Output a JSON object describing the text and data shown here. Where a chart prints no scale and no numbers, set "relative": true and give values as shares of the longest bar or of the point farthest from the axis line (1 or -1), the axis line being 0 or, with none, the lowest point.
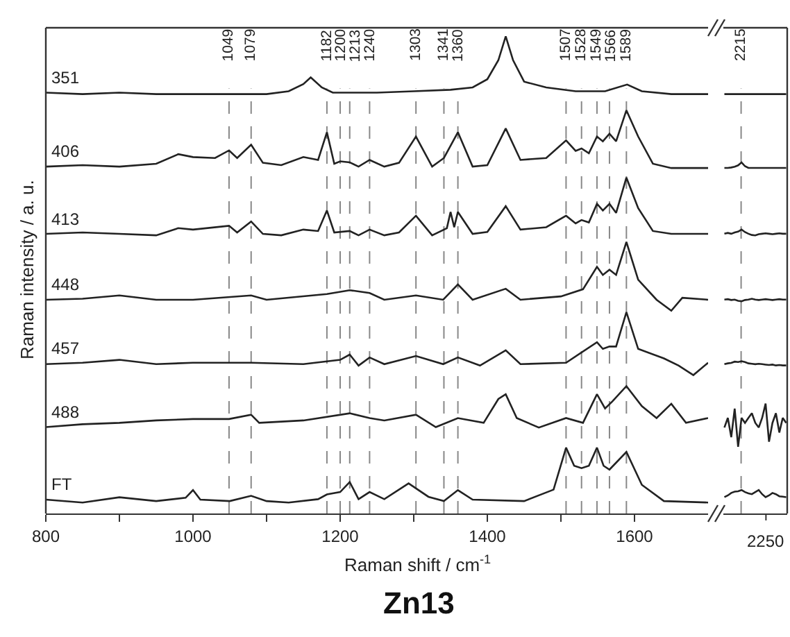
{
  "chart_data": [
    {
      "type": "line",
      "relative": true,
      "title": "Zn13",
      "xlabel": "Raman shift / cm$^{-1}$",
      "ylabel": "Raman intensity / a. u.",
      "xlim": [
        800,
        1700
      ],
      "xticks": [
        800,
        {
          "value": 900,
          "label": null
        },
        1000,
        {
          "value": 1100,
          "label": null
        },
        1200,
        {
          "value": 1300,
          "label": null
        },
        1400,
        {
          "value": 1500,
          "label": null
        },
        1600
      ],
      "tick_labels": "x",
      "legend": false,
      "grid": false,
      "line_style": "solid",
      "marker": "none",
      "series": [
        {
          "name": "351",
          "color": "#222222",
          "x": [
            800,
            850,
            900,
            950,
            1000,
            1050,
            1100,
            1130,
            1150,
            1160,
            1175,
            1190,
            1250,
            1300,
            1350,
            1380,
            1400,
            1415,
            1425,
            1435,
            1450,
            1480,
            1520,
            1560,
            1590,
            1610,
            1650,
            1700
          ],
          "values": [
            0.882,
            0.879,
            0.882,
            0.879,
            0.879,
            0.879,
            0.879,
            0.885,
            0.9,
            0.914,
            0.893,
            0.882,
            0.882,
            0.885,
            0.888,
            0.893,
            0.91,
            0.95,
            1.0,
            0.95,
            0.905,
            0.893,
            0.885,
            0.885,
            0.899,
            0.885,
            0.879,
            0.879
          ]
        },
        {
          "name": "406",
          "color": "#222222",
          "x": [
            800,
            850,
            900,
            950,
            980,
            1000,
            1030,
            1049,
            1060,
            1079,
            1095,
            1120,
            1150,
            1170,
            1182,
            1192,
            1200,
            1213,
            1225,
            1240,
            1260,
            1280,
            1303,
            1325,
            1341,
            1360,
            1380,
            1400,
            1425,
            1445,
            1480,
            1507,
            1520,
            1528,
            1538,
            1549,
            1557,
            1566,
            1575,
            1589,
            1605,
            1625,
            1650,
            1700
          ],
          "values": [
            0.727,
            0.73,
            0.727,
            0.733,
            0.753,
            0.747,
            0.745,
            0.761,
            0.745,
            0.773,
            0.735,
            0.73,
            0.747,
            0.741,
            0.799,
            0.733,
            0.738,
            0.736,
            0.727,
            0.741,
            0.727,
            0.735,
            0.79,
            0.727,
            0.745,
            0.799,
            0.727,
            0.73,
            0.807,
            0.741,
            0.745,
            0.782,
            0.76,
            0.765,
            0.755,
            0.79,
            0.78,
            0.796,
            0.78,
            0.845,
            0.79,
            0.733,
            0.724,
            0.724
          ]
        },
        {
          "name": "413",
          "color": "#222222",
          "x": [
            800,
            850,
            900,
            950,
            980,
            1000,
            1049,
            1060,
            1079,
            1095,
            1120,
            1150,
            1170,
            1182,
            1192,
            1213,
            1225,
            1240,
            1260,
            1280,
            1303,
            1325,
            1345,
            1350,
            1355,
            1360,
            1380,
            1400,
            1425,
            1445,
            1480,
            1507,
            1520,
            1528,
            1538,
            1549,
            1557,
            1566,
            1575,
            1589,
            1605,
            1625,
            1650,
            1700
          ],
          "values": [
            0.586,
            0.589,
            0.586,
            0.583,
            0.598,
            0.595,
            0.603,
            0.589,
            0.612,
            0.586,
            0.583,
            0.595,
            0.592,
            0.635,
            0.589,
            0.592,
            0.583,
            0.595,
            0.583,
            0.589,
            0.624,
            0.583,
            0.598,
            0.632,
            0.6,
            0.632,
            0.586,
            0.59,
            0.644,
            0.595,
            0.6,
            0.624,
            0.608,
            0.615,
            0.61,
            0.649,
            0.635,
            0.649,
            0.63,
            0.704,
            0.64,
            0.592,
            0.586,
            0.586
          ]
        },
        {
          "name": "448",
          "color": "#222222",
          "x": [
            800,
            850,
            900,
            950,
            1000,
            1079,
            1100,
            1182,
            1213,
            1240,
            1260,
            1303,
            1340,
            1360,
            1380,
            1425,
            1445,
            1500,
            1530,
            1549,
            1557,
            1566,
            1575,
            1589,
            1605,
            1630,
            1650,
            1665,
            1700
          ],
          "values": [
            0.448,
            0.45,
            0.457,
            0.448,
            0.448,
            0.457,
            0.448,
            0.46,
            0.468,
            0.462,
            0.448,
            0.457,
            0.448,
            0.48,
            0.448,
            0.471,
            0.448,
            0.455,
            0.47,
            0.517,
            0.5,
            0.511,
            0.5,
            0.569,
            0.49,
            0.448,
            0.425,
            0.452,
            0.448
          ]
        },
        {
          "name": "457",
          "color": "#222222",
          "x": [
            800,
            850,
            900,
            950,
            1000,
            1079,
            1150,
            1200,
            1213,
            1225,
            1240,
            1260,
            1303,
            1340,
            1360,
            1390,
            1425,
            1445,
            1507,
            1549,
            1557,
            1566,
            1575,
            1589,
            1605,
            1640,
            1660,
            1680,
            1700
          ],
          "values": [
            0.313,
            0.316,
            0.322,
            0.313,
            0.316,
            0.316,
            0.313,
            0.322,
            0.333,
            0.31,
            0.327,
            0.313,
            0.33,
            0.313,
            0.327,
            0.31,
            0.342,
            0.313,
            0.316,
            0.359,
            0.345,
            0.35,
            0.35,
            0.422,
            0.345,
            0.325,
            0.31,
            0.29,
            0.316
          ]
        },
        {
          "name": "488",
          "color": "#222222",
          "x": [
            800,
            850,
            900,
            950,
            1000,
            1049,
            1079,
            1090,
            1150,
            1213,
            1240,
            1260,
            1303,
            1330,
            1360,
            1395,
            1415,
            1425,
            1440,
            1470,
            1507,
            1530,
            1549,
            1560,
            1570,
            1589,
            1610,
            1630,
            1650,
            1670,
            1700
          ],
          "values": [
            0.181,
            0.187,
            0.19,
            0.195,
            0.198,
            0.198,
            0.207,
            0.19,
            0.195,
            0.21,
            0.2,
            0.195,
            0.207,
            0.181,
            0.2,
            0.19,
            0.24,
            0.25,
            0.2,
            0.18,
            0.2,
            0.19,
            0.25,
            0.22,
            0.235,
            0.267,
            0.225,
            0.2,
            0.23,
            0.19,
            0.2
          ]
        },
        {
          "name": "FT",
          "color": "#222222",
          "x": [
            800,
            850,
            900,
            950,
            990,
            1000,
            1010,
            1050,
            1079,
            1100,
            1130,
            1170,
            1182,
            1200,
            1213,
            1225,
            1240,
            1260,
            1293,
            1320,
            1341,
            1360,
            1380,
            1450,
            1490,
            1507,
            1518,
            1528,
            1538,
            1549,
            1558,
            1566,
            1589,
            1610,
            1640,
            1700
          ],
          "values": [
            0.029,
            0.023,
            0.034,
            0.026,
            0.033,
            0.049,
            0.029,
            0.026,
            0.037,
            0.026,
            0.023,
            0.03,
            0.04,
            0.045,
            0.066,
            0.03,
            0.045,
            0.03,
            0.063,
            0.035,
            0.026,
            0.049,
            0.029,
            0.026,
            0.05,
            0.138,
            0.1,
            0.095,
            0.1,
            0.138,
            0.1,
            0.092,
            0.129,
            0.06,
            0.026,
            0.023
          ]
        }
      ],
      "ref_lines": [
        {
          "axis": "x",
          "value": 1049,
          "label": "1049",
          "color": "#888888",
          "line_style": "dashed"
        },
        {
          "axis": "x",
          "value": 1079,
          "label": "1079",
          "color": "#888888",
          "line_style": "dashed"
        },
        {
          "axis": "x",
          "value": 1182,
          "label": "1182",
          "color": "#888888",
          "line_style": "dashed"
        },
        {
          "axis": "x",
          "value": 1200,
          "label": "1200",
          "color": "#888888",
          "line_style": "dashed"
        },
        {
          "axis": "x",
          "value": 1213,
          "label": "1213",
          "color": "#888888",
          "line_style": "dashed"
        },
        {
          "axis": "x",
          "value": 1240,
          "label": "1240",
          "color": "#888888",
          "line_style": "dashed"
        },
        {
          "axis": "x",
          "value": 1303,
          "label": "1303",
          "color": "#888888",
          "line_style": "dashed"
        },
        {
          "axis": "x",
          "value": 1341,
          "label": "1341",
          "color": "#888888",
          "line_style": "dashed"
        },
        {
          "axis": "x",
          "value": 1360,
          "label": "1360",
          "color": "#888888",
          "line_style": "dashed"
        },
        {
          "axis": "x",
          "value": 1507,
          "label": "1507",
          "color": "#888888",
          "line_style": "dashed"
        },
        {
          "axis": "x",
          "value": 1528,
          "label": "1528",
          "color": "#888888",
          "line_style": "dashed"
        },
        {
          "axis": "x",
          "value": 1549,
          "label": "1549",
          "color": "#888888",
          "line_style": "dashed"
        },
        {
          "axis": "x",
          "value": 1566,
          "label": "1566",
          "color": "#888888",
          "line_style": "dashed"
        },
        {
          "axis": "x",
          "value": 1589,
          "label": "1589",
          "color": "#888888",
          "line_style": "dashed"
        }
      ]
    },
    {
      "type": "line",
      "relative": true,
      "categories": [
        null,
        null,
        null,
        null,
        null,
        null,
        null,
        null,
        null,
        null,
        null,
        null,
        null,
        null,
        null,
        null,
        null,
        null,
        null
      ],
      "annotations": [
        "2250",
        "2215"
      ],
      "tick_labels": false,
      "legend": false,
      "grid": false,
      "line_style": "solid",
      "marker": "none",
      "series": [
        {
          "color": "#222222",
          "values": [
            1,
            1,
            1,
            1,
            1,
            1,
            1,
            1,
            1,
            1,
            1,
            1,
            1,
            1,
            1,
            1,
            1,
            1,
            1
          ]
        },
        {
          "color": "#222222",
          "values": [
            0.824,
            0.824,
            0.825,
            0.827,
            0.83,
            0.837,
            0.828,
            0.824,
            0.824,
            0.824,
            0.824,
            0.824,
            0.824,
            0.824,
            0.824,
            0.824,
            0.824,
            0.824,
            0.824
          ]
        },
        {
          "color": "#222222",
          "values": [
            0.667,
            0.669,
            0.667,
            0.67,
            0.672,
            0.677,
            0.671,
            0.667,
            0.664,
            0.663,
            0.666,
            0.667,
            0.668,
            0.667,
            0.666,
            0.667,
            0.668,
            0.667,
            0.667
          ]
        },
        {
          "color": "#222222",
          "values": [
            0.51,
            0.511,
            0.509,
            0.51,
            0.507,
            0.506,
            0.509,
            0.51,
            0.512,
            0.51,
            0.509,
            0.51,
            0.511,
            0.51,
            0.509,
            0.51,
            0.511,
            0.51,
            0.51
          ]
        },
        {
          "color": "#222222",
          "values": [
            0.356,
            0.358,
            0.359,
            0.362,
            0.361,
            0.363,
            0.361,
            0.358,
            0.357,
            0.356,
            0.357,
            0.356,
            0.355,
            0.354,
            0.355,
            0.353,
            0.354,
            0.353,
            0.353
          ]
        },
        {
          "color": "#222222",
          "values": [
            0.205,
            0.228,
            0.182,
            0.25,
            0.159,
            0.228,
            0.216,
            0.228,
            0.239,
            0.216,
            0.205,
            0.228,
            0.262,
            0.171,
            0.216,
            0.239,
            0.193,
            0.228,
            0.216
          ]
        },
        {
          "color": "#222222",
          "values": [
            0.039,
            0.043,
            0.049,
            0.052,
            0.053,
            0.056,
            0.051,
            0.048,
            0.046,
            0.051,
            0.056,
            0.046,
            0.039,
            0.043,
            0.049,
            0.046,
            0.041,
            0.04,
            0.039
          ]
        }
      ]
    }
  ]
}
